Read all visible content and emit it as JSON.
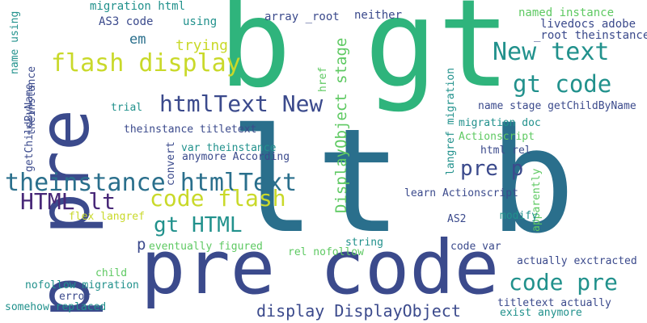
{
  "palette": {
    "navy": "#3b4a8c",
    "purple": "#482878",
    "steel": "#2a6f8c",
    "blue": "#31688e",
    "teal": "#21918c",
    "green": "#2fb47c",
    "lime": "#5ec962",
    "yellow": "#c9d92a"
  },
  "words": [
    {
      "text": "lt b",
      "color": "steel"
    },
    {
      "text": "b gt",
      "color": "green"
    },
    {
      "text": "pre code",
      "color": "navy"
    },
    {
      "text": "p pre",
      "color": "navy"
    },
    {
      "text": "theinstance htmlText",
      "color": "steel"
    },
    {
      "text": "flash display",
      "color": "yellow"
    },
    {
      "text": "htmlText New",
      "color": "navy"
    },
    {
      "text": "code flash",
      "color": "yellow"
    },
    {
      "text": "HTML lt",
      "color": "purple"
    },
    {
      "text": "gt HTML",
      "color": "teal"
    },
    {
      "text": "New text",
      "color": "teal"
    },
    {
      "text": "gt code",
      "color": "teal"
    },
    {
      "text": "pre p",
      "color": "navy"
    },
    {
      "text": "code pre",
      "color": "teal"
    },
    {
      "text": "display DisplayObject",
      "color": "navy"
    },
    {
      "text": "DisplayObject stage",
      "color": "lime"
    },
    {
      "text": "trying",
      "color": "yellow"
    },
    {
      "text": "em",
      "color": "steel"
    },
    {
      "text": "p",
      "color": "navy"
    },
    {
      "text": "migration html",
      "color": "teal"
    },
    {
      "text": "AS3 code",
      "color": "navy"
    },
    {
      "text": "using",
      "color": "teal"
    },
    {
      "text": "array _root",
      "color": "navy"
    },
    {
      "text": "neither",
      "color": "navy"
    },
    {
      "text": "named instance",
      "color": "lime"
    },
    {
      "text": "livedocs adobe",
      "color": "navy"
    },
    {
      "text": "_root theinstance",
      "color": "navy"
    },
    {
      "text": "name using",
      "color": "teal"
    },
    {
      "text": "theinstance",
      "color": "navy"
    },
    {
      "text": "getChildByName",
      "color": "navy"
    },
    {
      "text": "trial",
      "color": "teal"
    },
    {
      "text": "theinstance titletext",
      "color": "navy"
    },
    {
      "text": "var theinstance",
      "color": "teal"
    },
    {
      "text": "anymore According",
      "color": "navy"
    },
    {
      "text": "convert",
      "color": "navy"
    },
    {
      "text": "href",
      "color": "lime"
    },
    {
      "text": "name stage getChildByName",
      "color": "navy"
    },
    {
      "text": "migration doc",
      "color": "teal"
    },
    {
      "text": "Actionscript",
      "color": "lime"
    },
    {
      "text": "html rel",
      "color": "navy"
    },
    {
      "text": "langref migration",
      "color": "teal"
    },
    {
      "text": "learn Actionscript",
      "color": "navy"
    },
    {
      "text": "apparently",
      "color": "lime"
    },
    {
      "text": "flex langref",
      "color": "yellow"
    },
    {
      "text": "eventually figured",
      "color": "lime"
    },
    {
      "text": "AS2",
      "color": "navy"
    },
    {
      "text": "modify",
      "color": "teal"
    },
    {
      "text": "string",
      "color": "teal"
    },
    {
      "text": "rel nofollow",
      "color": "lime"
    },
    {
      "text": "code var",
      "color": "navy"
    },
    {
      "text": "child",
      "color": "lime"
    },
    {
      "text": "actually exctracted",
      "color": "navy"
    },
    {
      "text": "nofollow migration",
      "color": "teal"
    },
    {
      "text": "error",
      "color": "navy"
    },
    {
      "text": "somehow replaced",
      "color": "teal"
    },
    {
      "text": "titletext actually",
      "color": "navy"
    },
    {
      "text": "exist anymore",
      "color": "teal"
    }
  ]
}
